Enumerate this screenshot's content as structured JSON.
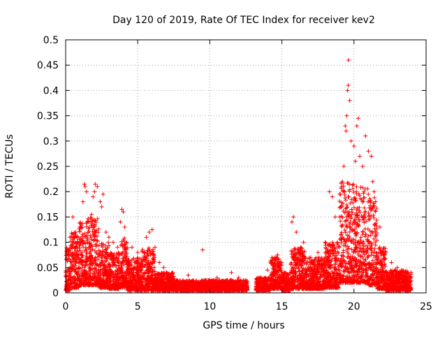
{
  "chart_data": {
    "type": "scatter",
    "title": "Day 120 of 2019, Rate Of TEC Index for receiver kev2",
    "xlabel": "GPS time / hours",
    "ylabel": "ROTI / TECUs",
    "xlim": [
      0,
      25
    ],
    "ylim": [
      0,
      0.5
    ],
    "x_ticks": [
      {
        "value": 0,
        "label": "0"
      },
      {
        "value": 5,
        "label": "5"
      },
      {
        "value": 10,
        "label": "10"
      },
      {
        "value": 15,
        "label": "15"
      },
      {
        "value": 20,
        "label": "20"
      },
      {
        "value": 25,
        "label": "25"
      }
    ],
    "y_ticks": [
      {
        "value": 0,
        "label": "0"
      },
      {
        "value": 0.05,
        "label": "0.05"
      },
      {
        "value": 0.1,
        "label": "0.1"
      },
      {
        "value": 0.15,
        "label": "0.15"
      },
      {
        "value": 0.2,
        "label": "0.2"
      },
      {
        "value": 0.25,
        "label": "0.25"
      },
      {
        "value": 0.3,
        "label": "0.3"
      },
      {
        "value": 0.35,
        "label": "0.35"
      },
      {
        "value": 0.4,
        "label": "0.4"
      },
      {
        "value": 0.45,
        "label": "0.45"
      },
      {
        "value": 0.5,
        "label": "0.5"
      }
    ],
    "grid": true,
    "marker": "plus",
    "series": [
      {
        "name": "ROTI",
        "color": "#ff0000",
        "envelope": [
          {
            "start": 0.0,
            "end": 0.3,
            "low": 0.005,
            "high": 0.09
          },
          {
            "start": 0.3,
            "end": 0.9,
            "low": 0.01,
            "high": 0.12
          },
          {
            "start": 0.9,
            "end": 1.5,
            "low": 0.015,
            "high": 0.14
          },
          {
            "start": 1.5,
            "end": 2.3,
            "low": 0.015,
            "high": 0.15
          },
          {
            "start": 2.3,
            "end": 3.0,
            "low": 0.01,
            "high": 0.1
          },
          {
            "start": 3.0,
            "end": 3.8,
            "low": 0.008,
            "high": 0.08
          },
          {
            "start": 3.8,
            "end": 4.3,
            "low": 0.01,
            "high": 0.11
          },
          {
            "start": 4.3,
            "end": 5.3,
            "low": 0.005,
            "high": 0.07
          },
          {
            "start": 5.3,
            "end": 6.2,
            "low": 0.005,
            "high": 0.09
          },
          {
            "start": 6.2,
            "end": 7.5,
            "low": 0.005,
            "high": 0.04
          },
          {
            "start": 7.5,
            "end": 10.0,
            "low": 0.005,
            "high": 0.025
          },
          {
            "start": 10.0,
            "end": 12.6,
            "low": 0.005,
            "high": 0.025
          },
          {
            "start": 13.2,
            "end": 14.2,
            "low": 0.005,
            "high": 0.03
          },
          {
            "start": 14.2,
            "end": 15.0,
            "low": 0.008,
            "high": 0.07
          },
          {
            "start": 15.0,
            "end": 15.6,
            "low": 0.005,
            "high": 0.04
          },
          {
            "start": 15.6,
            "end": 16.6,
            "low": 0.008,
            "high": 0.09
          },
          {
            "start": 16.6,
            "end": 18.0,
            "low": 0.008,
            "high": 0.07
          },
          {
            "start": 18.0,
            "end": 19.0,
            "low": 0.01,
            "high": 0.1
          },
          {
            "start": 19.0,
            "end": 20.0,
            "low": 0.02,
            "high": 0.22
          },
          {
            "start": 20.0,
            "end": 21.0,
            "low": 0.02,
            "high": 0.21
          },
          {
            "start": 21.0,
            "end": 21.6,
            "low": 0.015,
            "high": 0.19
          },
          {
            "start": 21.6,
            "end": 22.2,
            "low": 0.008,
            "high": 0.09
          },
          {
            "start": 22.2,
            "end": 24.0,
            "low": 0.005,
            "high": 0.045
          }
        ],
        "points": [
          [
            0.1,
            0.08
          ],
          [
            0.3,
            0.11
          ],
          [
            0.5,
            0.15
          ],
          [
            0.7,
            0.12
          ],
          [
            0.8,
            0.1
          ],
          [
            1.0,
            0.13
          ],
          [
            1.2,
            0.18
          ],
          [
            1.3,
            0.215
          ],
          [
            1.35,
            0.21
          ],
          [
            1.45,
            0.2
          ],
          [
            1.6,
            0.14
          ],
          [
            1.8,
            0.155
          ],
          [
            1.9,
            0.19
          ],
          [
            2.0,
            0.2
          ],
          [
            2.05,
            0.215
          ],
          [
            2.2,
            0.21
          ],
          [
            2.4,
            0.18
          ],
          [
            2.5,
            0.17
          ],
          [
            2.6,
            0.195
          ],
          [
            2.8,
            0.12
          ],
          [
            3.0,
            0.11
          ],
          [
            3.3,
            0.1
          ],
          [
            3.6,
            0.09
          ],
          [
            3.8,
            0.14
          ],
          [
            3.9,
            0.165
          ],
          [
            4.0,
            0.16
          ],
          [
            4.1,
            0.13
          ],
          [
            4.6,
            0.09
          ],
          [
            5.0,
            0.08
          ],
          [
            5.6,
            0.11
          ],
          [
            5.8,
            0.12
          ],
          [
            6.0,
            0.125
          ],
          [
            6.2,
            0.09
          ],
          [
            6.5,
            0.06
          ],
          [
            6.8,
            0.05
          ],
          [
            7.0,
            0.04
          ],
          [
            8.5,
            0.035
          ],
          [
            9.5,
            0.085
          ],
          [
            10.5,
            0.03
          ],
          [
            11.5,
            0.04
          ],
          [
            12.0,
            0.03
          ],
          [
            12.5,
            0.025
          ],
          [
            13.5,
            0.03
          ],
          [
            14.0,
            0.045
          ],
          [
            14.5,
            0.07
          ],
          [
            14.7,
            0.075
          ],
          [
            15.2,
            0.04
          ],
          [
            15.7,
            0.14
          ],
          [
            15.8,
            0.15
          ],
          [
            16.0,
            0.12
          ],
          [
            16.3,
            0.09
          ],
          [
            16.5,
            0.1
          ],
          [
            17.0,
            0.07
          ],
          [
            17.5,
            0.08
          ],
          [
            18.0,
            0.08
          ],
          [
            18.3,
            0.2
          ],
          [
            18.5,
            0.19
          ],
          [
            18.7,
            0.15
          ],
          [
            19.0,
            0.15
          ],
          [
            19.2,
            0.22
          ],
          [
            19.3,
            0.25
          ],
          [
            19.4,
            0.33
          ],
          [
            19.45,
            0.32
          ],
          [
            19.5,
            0.35
          ],
          [
            19.55,
            0.4
          ],
          [
            19.6,
            0.41
          ],
          [
            19.62,
            0.46
          ],
          [
            19.7,
            0.38
          ],
          [
            19.8,
            0.3
          ],
          [
            20.0,
            0.29
          ],
          [
            20.1,
            0.26
          ],
          [
            20.2,
            0.33
          ],
          [
            20.3,
            0.345
          ],
          [
            20.4,
            0.27
          ],
          [
            20.6,
            0.25
          ],
          [
            20.8,
            0.31
          ],
          [
            21.0,
            0.28
          ],
          [
            21.2,
            0.27
          ],
          [
            21.3,
            0.22
          ],
          [
            21.4,
            0.2
          ],
          [
            21.5,
            0.18
          ],
          [
            21.8,
            0.13
          ],
          [
            22.2,
            0.08
          ],
          [
            22.6,
            0.06
          ],
          [
            23.0,
            0.05
          ],
          [
            23.5,
            0.04
          ],
          [
            23.9,
            0.03
          ]
        ]
      }
    ]
  }
}
